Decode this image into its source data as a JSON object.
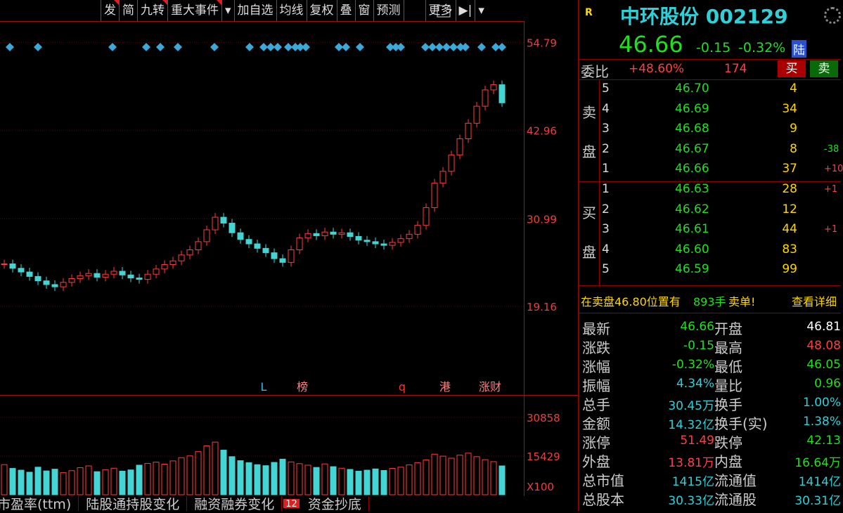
{
  "toolbar": [
    "发",
    "简",
    "九转",
    "重大事件",
    "▾",
    "加自选",
    "均线",
    "复权",
    "叠",
    "窗",
    "预测",
    "更多",
    "▶|",
    "▾"
  ],
  "chart": {
    "type": "candlestick",
    "ylim": [
      7.38,
      57.7
    ],
    "yticks": [
      54.79,
      42.96,
      30.99,
      19.16
    ],
    "closes": [
      24.9,
      24.3,
      23.8,
      23.2,
      22.6,
      22.1,
      21.8,
      22.4,
      22.9,
      23.3,
      23.6,
      23.1,
      23.5,
      23.9,
      23.4,
      23.0,
      22.8,
      23.5,
      24.2,
      24.8,
      25.3,
      26.1,
      26.8,
      27.9,
      29.5,
      31.2,
      30.4,
      29.1,
      28.2,
      27.6,
      27.0,
      26.4,
      25.6,
      25.1,
      26.8,
      28.4,
      29.0,
      28.7,
      29.2,
      28.9,
      29.1,
      28.6,
      28.1,
      27.9,
      27.6,
      27.4,
      27.8,
      28.3,
      28.9,
      30.1,
      32.5,
      35.8,
      37.4,
      39.6,
      41.8,
      43.9,
      46.2,
      48.4,
      49.1,
      46.66
    ],
    "markers": [
      "L",
      "榜",
      "q",
      "港",
      "涨财"
    ]
  },
  "volume": {
    "type": "bar",
    "ylim": [
      0,
      39560
    ],
    "yticks": [
      30858,
      15429
    ],
    "unit": "X100",
    "values": [
      12000,
      10500,
      9800,
      9000,
      11000,
      9500,
      10200,
      8800,
      9600,
      10800,
      11500,
      9200,
      10000,
      10600,
      9400,
      9900,
      11800,
      12500,
      13000,
      12200,
      13500,
      14800,
      15500,
      17200,
      19500,
      21000,
      17800,
      15200,
      13600,
      12800,
      12000,
      11600,
      12900,
      14200,
      13100,
      12400,
      11800,
      10900,
      12300,
      11200,
      10600,
      10100,
      9400,
      9800,
      10300,
      9700,
      10500,
      11000,
      11900,
      12800,
      13900,
      16200,
      15400,
      14600,
      15800,
      16600,
      15200,
      14000,
      13200,
      11500
    ]
  },
  "quote": {
    "badge": "R",
    "title": "中环股份 002129",
    "price": "46.66",
    "change": "-0.15",
    "change_pct": "-0.32%",
    "tag": "陆",
    "ratio_label": "委比",
    "ratio": "+48.60%",
    "ratio_diff": "174",
    "buy_btn": "买",
    "sell_btn": "卖",
    "sell_side": [
      "卖",
      "盘"
    ],
    "buy_side": [
      "买",
      "盘"
    ],
    "sell": [
      {
        "level": "5",
        "price": "46.70",
        "volume": "4",
        "extra": ""
      },
      {
        "level": "4",
        "price": "46.69",
        "volume": "34",
        "extra": ""
      },
      {
        "level": "3",
        "price": "46.68",
        "volume": "9",
        "extra": ""
      },
      {
        "level": "2",
        "price": "46.67",
        "volume": "8",
        "extra": "-38"
      },
      {
        "level": "1",
        "price": "46.66",
        "volume": "37",
        "extra": "+10"
      }
    ],
    "buy": [
      {
        "level": "1",
        "price": "46.63",
        "volume": "28",
        "extra": "+1"
      },
      {
        "level": "2",
        "price": "46.62",
        "volume": "12",
        "extra": ""
      },
      {
        "level": "3",
        "price": "46.61",
        "volume": "44",
        "extra": "+1"
      },
      {
        "level": "4",
        "price": "46.60",
        "volume": "83",
        "extra": ""
      },
      {
        "level": "5",
        "price": "46.59",
        "volume": "99",
        "extra": ""
      }
    ],
    "notice": {
      "text": "在卖盘46.80位置有",
      "amount": "893手",
      "suffix": "卖单!",
      "link": "查看详细"
    },
    "stats": [
      [
        "最新",
        "46.66",
        "开盘",
        "46.81"
      ],
      [
        "涨跌",
        "-0.15",
        "最高",
        "48.08"
      ],
      [
        "涨幅",
        "-0.32%",
        "最低",
        "46.05"
      ],
      [
        "振幅",
        "4.34%",
        "量比",
        "0.96"
      ],
      [
        "总手",
        "30.45万",
        "换手",
        "1.00%"
      ],
      [
        "金额",
        "14.32亿",
        "换手(实)",
        "1.38%"
      ],
      [
        "涨停",
        "51.49",
        "跌停",
        "42.13"
      ],
      [
        "外盘",
        "13.81万",
        "内盘",
        "16.64万"
      ],
      [
        "总市值",
        "1415亿",
        "流通值",
        "1414亿"
      ],
      [
        "总股本",
        "30.33亿",
        "流通股",
        "30.31亿"
      ]
    ]
  },
  "tabs": [
    "市盈率(ttm)",
    "陆股通持股变化",
    "融资融券变化",
    "12",
    "资金抄底"
  ]
}
